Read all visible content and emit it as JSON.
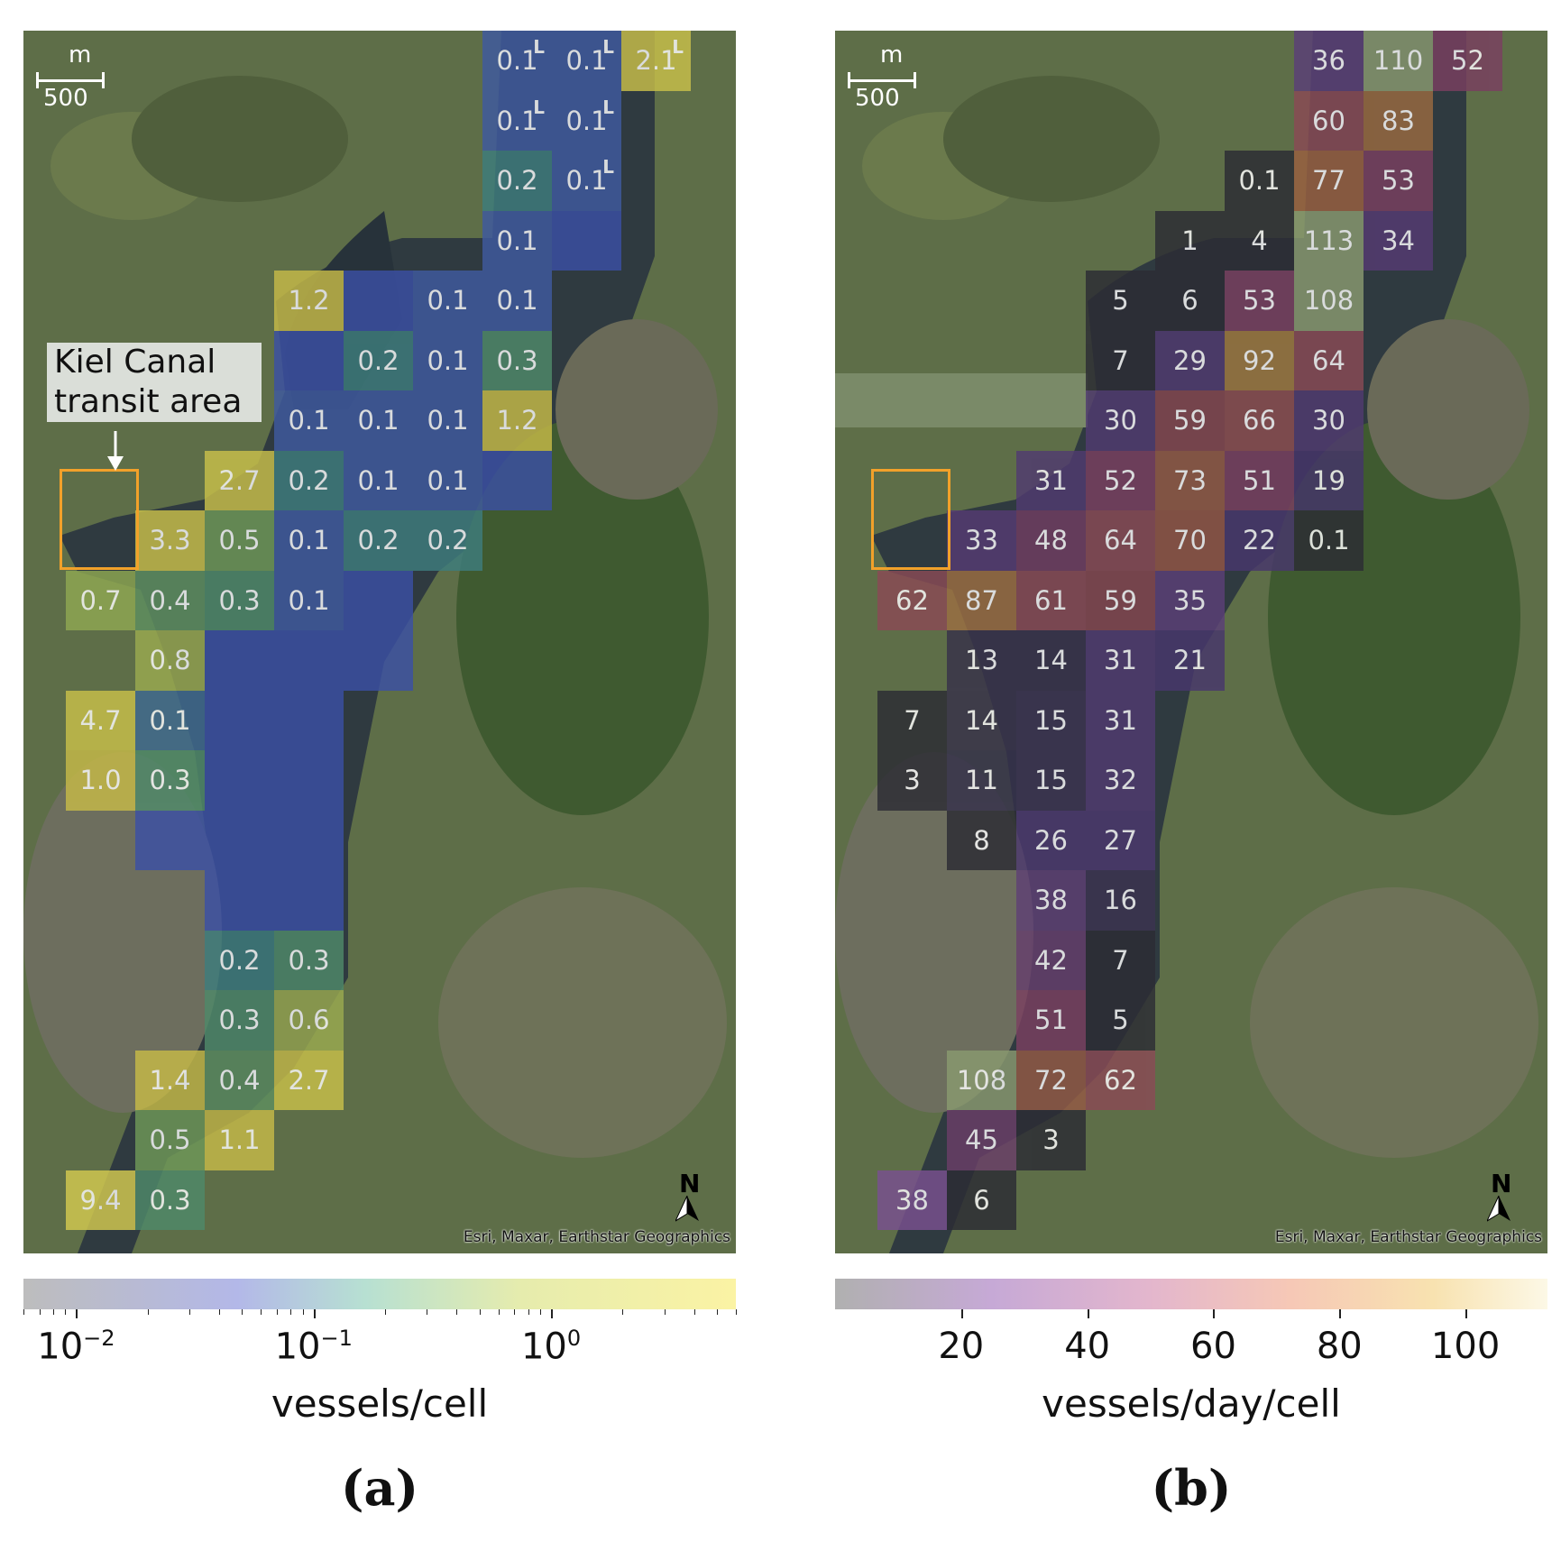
{
  "panels": [
    {
      "id": "a",
      "label": "(a)",
      "colorbar_title": "vessels/cell",
      "colorbar": {
        "scale": "log",
        "range": [
          0.006,
          6
        ],
        "ticks": [
          "10^-2",
          "10^-1",
          "10^0"
        ]
      },
      "scale_bar": {
        "unit": "m",
        "value": "500"
      },
      "north_label": "N",
      "attribution": "Esri, Maxar, Earthstar Geographics",
      "callout": {
        "line1": "Kiel Canal",
        "line2": "transit area"
      },
      "cells": [
        {
          "row": 0,
          "col": 7,
          "text": "0.1",
          "sup": "L",
          "color": "#3f5aa0"
        },
        {
          "row": 0,
          "col": 8,
          "text": "0.1",
          "sup": "L",
          "color": "#3f5aa0"
        },
        {
          "row": 0,
          "col": 9,
          "text": "2.1",
          "sup": "L",
          "color": "#c9c04a"
        },
        {
          "row": 1,
          "col": 7,
          "text": "0.1",
          "sup": "L",
          "color": "#3f5aa0"
        },
        {
          "row": 1,
          "col": 8,
          "text": "0.1",
          "sup": "L",
          "color": "#3f5aa0"
        },
        {
          "row": 2,
          "col": 7,
          "text": "0.2",
          "sup": "",
          "color": "#3e7d7d"
        },
        {
          "row": 2,
          "col": 8,
          "text": "0.1",
          "sup": "L",
          "color": "#3f5aa0"
        },
        {
          "row": 3,
          "col": 7,
          "text": "0.1",
          "sup": "",
          "color": "#3f5aa0"
        },
        {
          "row": 3,
          "col": 8,
          "text": "",
          "sup": "",
          "color": "#3a4fa5"
        },
        {
          "row": 4,
          "col": 4,
          "text": "1.2",
          "sup": "",
          "color": "#c6ba48"
        },
        {
          "row": 4,
          "col": 5,
          "text": "",
          "sup": "",
          "color": "#3a4fa5"
        },
        {
          "row": 4,
          "col": 6,
          "text": "0.1",
          "sup": "",
          "color": "#3f5aa0"
        },
        {
          "row": 4,
          "col": 7,
          "text": "0.1",
          "sup": "",
          "color": "#3f5aa0"
        },
        {
          "row": 5,
          "col": 4,
          "text": "",
          "sup": "",
          "color": "#3a4fa5"
        },
        {
          "row": 5,
          "col": 5,
          "text": "0.2",
          "sup": "",
          "color": "#3e7d7d"
        },
        {
          "row": 5,
          "col": 6,
          "text": "0.1",
          "sup": "",
          "color": "#3f5aa0"
        },
        {
          "row": 5,
          "col": 7,
          "text": "0.3",
          "sup": "",
          "color": "#4f8a6a"
        },
        {
          "row": 6,
          "col": 4,
          "text": "0.1",
          "sup": "",
          "color": "#3f5aa0"
        },
        {
          "row": 6,
          "col": 5,
          "text": "0.1",
          "sup": "",
          "color": "#3f5aa0"
        },
        {
          "row": 6,
          "col": 6,
          "text": "0.1",
          "sup": "",
          "color": "#3f5aa0"
        },
        {
          "row": 6,
          "col": 7,
          "text": "1.2",
          "sup": "",
          "color": "#c6ba48"
        },
        {
          "row": 7,
          "col": 3,
          "text": "2.7",
          "sup": "",
          "color": "#c9c04a"
        },
        {
          "row": 7,
          "col": 4,
          "text": "0.2",
          "sup": "",
          "color": "#3e7d7d"
        },
        {
          "row": 7,
          "col": 5,
          "text": "0.1",
          "sup": "",
          "color": "#3f5aa0"
        },
        {
          "row": 7,
          "col": 6,
          "text": "0.1",
          "sup": "",
          "color": "#3f5aa0"
        },
        {
          "row": 7,
          "col": 7,
          "text": "",
          "sup": "",
          "color": "#3a4fa5"
        },
        {
          "row": 8,
          "col": 2,
          "text": "3.3",
          "sup": "",
          "color": "#c9c04a"
        },
        {
          "row": 8,
          "col": 3,
          "text": "0.5",
          "sup": "",
          "color": "#6f9858"
        },
        {
          "row": 8,
          "col": 4,
          "text": "0.1",
          "sup": "",
          "color": "#3f5aa0"
        },
        {
          "row": 8,
          "col": 5,
          "text": "0.2",
          "sup": "",
          "color": "#3e7d7d"
        },
        {
          "row": 8,
          "col": 6,
          "text": "0.2",
          "sup": "",
          "color": "#3e7d7d"
        },
        {
          "row": 9,
          "col": 1,
          "text": "0.7",
          "sup": "",
          "color": "#8fa852"
        },
        {
          "row": 9,
          "col": 2,
          "text": "0.4",
          "sup": "",
          "color": "#5f9060"
        },
        {
          "row": 9,
          "col": 3,
          "text": "0.3",
          "sup": "",
          "color": "#4f8a6a"
        },
        {
          "row": 9,
          "col": 4,
          "text": "0.1",
          "sup": "",
          "color": "#3f5aa0"
        },
        {
          "row": 9,
          "col": 5,
          "text": "",
          "sup": "",
          "color": "#3a4fa5"
        },
        {
          "row": 10,
          "col": 2,
          "text": "0.8",
          "sup": "",
          "color": "#9aaa50"
        },
        {
          "row": 10,
          "col": 3,
          "text": "",
          "sup": "",
          "color": "#3a4fa5"
        },
        {
          "row": 10,
          "col": 4,
          "text": "",
          "sup": "",
          "color": "#3a4fa5"
        },
        {
          "row": 10,
          "col": 5,
          "text": "",
          "sup": "",
          "color": "#3a4fa5"
        },
        {
          "row": 11,
          "col": 1,
          "text": "4.7",
          "sup": "",
          "color": "#c9c04a"
        },
        {
          "row": 11,
          "col": 2,
          "text": "0.1",
          "sup": "",
          "color": "#3f6a90"
        },
        {
          "row": 11,
          "col": 3,
          "text": "",
          "sup": "",
          "color": "#3a4fa5"
        },
        {
          "row": 11,
          "col": 4,
          "text": "",
          "sup": "",
          "color": "#3a4fa5"
        },
        {
          "row": 12,
          "col": 1,
          "text": "1.0",
          "sup": "",
          "color": "#c6ba48"
        },
        {
          "row": 12,
          "col": 2,
          "text": "0.3",
          "sup": "",
          "color": "#4f8a6a"
        },
        {
          "row": 12,
          "col": 3,
          "text": "",
          "sup": "",
          "color": "#3a4fa5"
        },
        {
          "row": 12,
          "col": 4,
          "text": "",
          "sup": "",
          "color": "#3a4fa5"
        },
        {
          "row": 13,
          "col": 2,
          "text": "",
          "sup": "",
          "color": "#3a4fa5"
        },
        {
          "row": 13,
          "col": 3,
          "text": "",
          "sup": "",
          "color": "#3a4fa5"
        },
        {
          "row": 13,
          "col": 4,
          "text": "",
          "sup": "",
          "color": "#3a4fa5"
        },
        {
          "row": 14,
          "col": 3,
          "text": "",
          "sup": "",
          "color": "#3a4fa5"
        },
        {
          "row": 14,
          "col": 4,
          "text": "",
          "sup": "",
          "color": "#3a4fa5"
        },
        {
          "row": 15,
          "col": 3,
          "text": "0.2",
          "sup": "",
          "color": "#3e7d7d"
        },
        {
          "row": 15,
          "col": 4,
          "text": "0.3",
          "sup": "",
          "color": "#4f8a6a"
        },
        {
          "row": 16,
          "col": 3,
          "text": "0.3",
          "sup": "",
          "color": "#4f8a6a"
        },
        {
          "row": 16,
          "col": 4,
          "text": "0.6",
          "sup": "",
          "color": "#9aaa50"
        },
        {
          "row": 17,
          "col": 2,
          "text": "1.4",
          "sup": "",
          "color": "#c6ba48"
        },
        {
          "row": 17,
          "col": 3,
          "text": "0.4",
          "sup": "",
          "color": "#5f9060"
        },
        {
          "row": 17,
          "col": 4,
          "text": "2.7",
          "sup": "",
          "color": "#c9c04a"
        },
        {
          "row": 18,
          "col": 2,
          "text": "0.5",
          "sup": "",
          "color": "#6f9858"
        },
        {
          "row": 18,
          "col": 3,
          "text": "1.1",
          "sup": "",
          "color": "#c6ba48"
        },
        {
          "row": 19,
          "col": 1,
          "text": "9.4",
          "sup": "",
          "color": "#d4ca50"
        },
        {
          "row": 19,
          "col": 2,
          "text": "0.3",
          "sup": "",
          "color": "#4f8a6a"
        }
      ]
    },
    {
      "id": "b",
      "label": "(b)",
      "colorbar_title": "vessels/day/cell",
      "colorbar": {
        "scale": "linear",
        "range": [
          0,
          113
        ],
        "ticks": [
          "20",
          "40",
          "60",
          "80",
          "100"
        ]
      },
      "scale_bar": {
        "unit": "m",
        "value": "500"
      },
      "north_label": "N",
      "attribution": "Esri, Maxar, Earthstar Geographics",
      "cells": [
        {
          "row": 0,
          "col": 7,
          "text": "36",
          "color": "#5b3f78"
        },
        {
          "row": 0,
          "col": 8,
          "text": "110",
          "color": "#8a9a70"
        },
        {
          "row": 0,
          "col": 9,
          "text": "52",
          "color": "#7a3f60"
        },
        {
          "row": 1,
          "col": 7,
          "text": "60",
          "color": "#8a4a55"
        },
        {
          "row": 1,
          "col": 8,
          "text": "83",
          "color": "#9a6a40"
        },
        {
          "row": 2,
          "col": 6,
          "text": "0.1",
          "color": "#2c2c34"
        },
        {
          "row": 2,
          "col": 7,
          "text": "77",
          "color": "#9a6040"
        },
        {
          "row": 2,
          "col": 8,
          "text": "53",
          "color": "#7a3f60"
        },
        {
          "row": 3,
          "col": 5,
          "text": "1",
          "color": "#2c2c34"
        },
        {
          "row": 3,
          "col": 6,
          "text": "4",
          "color": "#2c2c34"
        },
        {
          "row": 3,
          "col": 7,
          "text": "113",
          "color": "#8a9a70"
        },
        {
          "row": 3,
          "col": 8,
          "text": "34",
          "color": "#553a72"
        },
        {
          "row": 4,
          "col": 4,
          "text": "5",
          "color": "#2c2c34"
        },
        {
          "row": 4,
          "col": 5,
          "text": "6",
          "color": "#2c2c34"
        },
        {
          "row": 4,
          "col": 6,
          "text": "53",
          "color": "#7a3f60"
        },
        {
          "row": 4,
          "col": 7,
          "text": "108",
          "color": "#8a9a70"
        },
        {
          "row": 5,
          "col": 4,
          "text": "7",
          "color": "#2c2c34"
        },
        {
          "row": 5,
          "col": 5,
          "text": "29",
          "color": "#503a70"
        },
        {
          "row": 5,
          "col": 6,
          "text": "92",
          "color": "#a07a40"
        },
        {
          "row": 5,
          "col": 7,
          "text": "64",
          "color": "#8a4a55"
        },
        {
          "row": 6,
          "col": 4,
          "text": "30",
          "color": "#503a70"
        },
        {
          "row": 6,
          "col": 5,
          "text": "59",
          "color": "#85474f"
        },
        {
          "row": 6,
          "col": 6,
          "text": "66",
          "color": "#8d4e50"
        },
        {
          "row": 6,
          "col": 7,
          "text": "30",
          "color": "#503a70"
        },
        {
          "row": 7,
          "col": 3,
          "text": "31",
          "color": "#503a70"
        },
        {
          "row": 7,
          "col": 4,
          "text": "52",
          "color": "#7a3f60"
        },
        {
          "row": 7,
          "col": 5,
          "text": "73",
          "color": "#945a45"
        },
        {
          "row": 7,
          "col": 6,
          "text": "51",
          "color": "#7a3f60"
        },
        {
          "row": 7,
          "col": 7,
          "text": "19",
          "color": "#45356a"
        },
        {
          "row": 8,
          "col": 2,
          "text": "33",
          "color": "#553a72"
        },
        {
          "row": 8,
          "col": 3,
          "text": "48",
          "color": "#703d62"
        },
        {
          "row": 8,
          "col": 4,
          "text": "64",
          "color": "#8a4a55"
        },
        {
          "row": 8,
          "col": 5,
          "text": "70",
          "color": "#925545"
        },
        {
          "row": 8,
          "col": 6,
          "text": "22",
          "color": "#48376c"
        },
        {
          "row": 8,
          "col": 7,
          "text": "0.1",
          "color": "#2c2c34"
        },
        {
          "row": 9,
          "col": 1,
          "text": "62",
          "color": "#8a4a55"
        },
        {
          "row": 9,
          "col": 2,
          "text": "87",
          "color": "#9c6e42"
        },
        {
          "row": 9,
          "col": 3,
          "text": "61",
          "color": "#8a4a55"
        },
        {
          "row": 9,
          "col": 4,
          "text": "59",
          "color": "#85474f"
        },
        {
          "row": 9,
          "col": 5,
          "text": "35",
          "color": "#5b3f78"
        },
        {
          "row": 10,
          "col": 2,
          "text": "13",
          "color": "#38324a"
        },
        {
          "row": 10,
          "col": 3,
          "text": "14",
          "color": "#38324a"
        },
        {
          "row": 10,
          "col": 4,
          "text": "31",
          "color": "#503a70"
        },
        {
          "row": 10,
          "col": 5,
          "text": "21",
          "color": "#48376c"
        },
        {
          "row": 11,
          "col": 1,
          "text": "7",
          "color": "#2c2c34"
        },
        {
          "row": 11,
          "col": 2,
          "text": "14",
          "color": "#38324a"
        },
        {
          "row": 11,
          "col": 3,
          "text": "15",
          "color": "#3c3350"
        },
        {
          "row": 11,
          "col": 4,
          "text": "31",
          "color": "#503a70"
        },
        {
          "row": 12,
          "col": 1,
          "text": "3",
          "color": "#2c2c34"
        },
        {
          "row": 12,
          "col": 2,
          "text": "11",
          "color": "#34304a"
        },
        {
          "row": 12,
          "col": 3,
          "text": "15",
          "color": "#3c3350"
        },
        {
          "row": 12,
          "col": 4,
          "text": "32",
          "color": "#503a70"
        },
        {
          "row": 13,
          "col": 2,
          "text": "8",
          "color": "#2c2c34"
        },
        {
          "row": 13,
          "col": 3,
          "text": "26",
          "color": "#4c386e"
        },
        {
          "row": 13,
          "col": 4,
          "text": "27",
          "color": "#4c386e"
        },
        {
          "row": 14,
          "col": 3,
          "text": "38",
          "color": "#5e3f74"
        },
        {
          "row": 14,
          "col": 4,
          "text": "16",
          "color": "#3c3350"
        },
        {
          "row": 15,
          "col": 3,
          "text": "42",
          "color": "#653e6c"
        },
        {
          "row": 15,
          "col": 4,
          "text": "7",
          "color": "#2c2c34"
        },
        {
          "row": 16,
          "col": 3,
          "text": "51",
          "color": "#7a3f60"
        },
        {
          "row": 16,
          "col": 4,
          "text": "5",
          "color": "#2c2c34"
        },
        {
          "row": 17,
          "col": 2,
          "text": "108",
          "color": "#8a9a70"
        },
        {
          "row": 17,
          "col": 3,
          "text": "72",
          "color": "#945a45"
        },
        {
          "row": 17,
          "col": 4,
          "text": "62",
          "color": "#8a4a55"
        },
        {
          "row": 18,
          "col": 2,
          "text": "45",
          "color": "#6a3e68"
        },
        {
          "row": 18,
          "col": 3,
          "text": "3",
          "color": "#2c2c34"
        },
        {
          "row": 19,
          "col": 1,
          "text": "38",
          "color": "#7a5090"
        },
        {
          "row": 19,
          "col": 2,
          "text": "6",
          "color": "#2c2c34"
        }
      ]
    }
  ]
}
